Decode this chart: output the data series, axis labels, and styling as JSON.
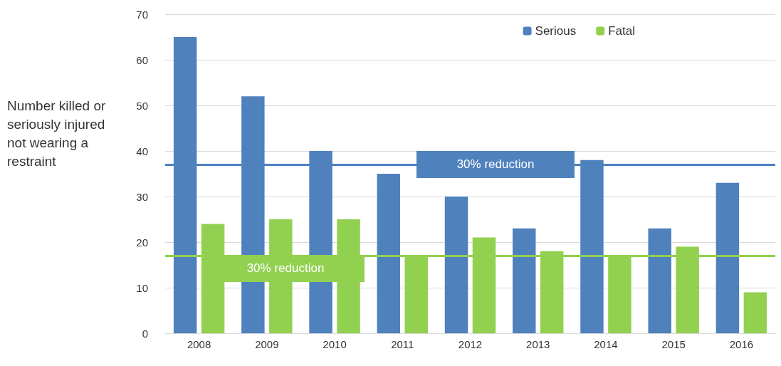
{
  "chart_data": {
    "type": "bar",
    "ylabel": "Number killed or seriously injured not wearing a restraint",
    "categories": [
      "2008",
      "2009",
      "2010",
      "2011",
      "2012",
      "2013",
      "2014",
      "2015",
      "2016"
    ],
    "series": [
      {
        "name": "Serious",
        "color": "#4f81bd",
        "values": [
          65,
          52,
          40,
          35,
          30,
          23,
          38,
          23,
          33
        ]
      },
      {
        "name": "Fatal",
        "color": "#92d050",
        "values": [
          24,
          25,
          25,
          17,
          21,
          18,
          17,
          19,
          9
        ]
      }
    ],
    "ylim": [
      0,
      70
    ],
    "yticks": [
      0,
      10,
      20,
      30,
      40,
      50,
      60,
      70
    ],
    "grid": "y",
    "legend": "top right",
    "ref_lines": [
      {
        "axis": "y",
        "value": 37,
        "label": "30% reduction",
        "color": "#4f81bd",
        "line_style": "solid"
      },
      {
        "axis": "y",
        "value": 17,
        "label": "30% reduction",
        "color": "#92d050",
        "line_style": "solid"
      }
    ]
  }
}
